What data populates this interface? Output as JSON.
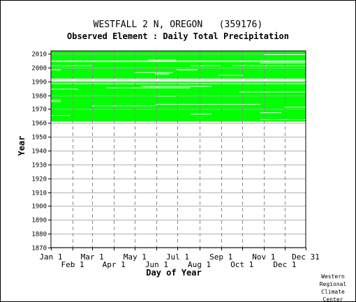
{
  "chart_data": {
    "type": "heatmap",
    "title": "WESTFALL 2 N, OREGON   (359176)",
    "subtitle": "Observed Element : Daily Total Precipitation",
    "xlabel": "Day of Year",
    "ylabel": "Year",
    "x_ticks_top_row": [
      "Jan 1",
      "Mar 1",
      "May 1",
      "Jul 1",
      "Sep 1",
      "Nov 1",
      "Dec 31"
    ],
    "x_ticks_bottom_row": [
      "Feb 1",
      "Apr 1",
      "Jun 1",
      "Aug 1",
      "Oct 1",
      "Dec 1"
    ],
    "x_tick_days": [
      1,
      32,
      60,
      91,
      121,
      152,
      182,
      213,
      244,
      274,
      305,
      335,
      365
    ],
    "y_ticks": [
      1870,
      1880,
      1890,
      1900,
      1910,
      1920,
      1930,
      1940,
      1950,
      1960,
      1970,
      1980,
      1990,
      2000,
      2010
    ],
    "ylim": [
      1870,
      2012
    ],
    "xlim": [
      1,
      365
    ],
    "grid": true,
    "data_color": "#00ff00",
    "data_year_ranges": [
      [
        1961,
        1989
      ],
      [
        1992,
        2003
      ],
      [
        2005,
        2011
      ]
    ],
    "gaps": [
      {
        "year": 1962,
        "day_start": 300,
        "day_end": 365
      },
      {
        "year": 1965,
        "day_start": 1,
        "day_end": 28
      },
      {
        "year": 1966,
        "day_start": 200,
        "day_end": 230
      },
      {
        "year": 1967,
        "day_start": 300,
        "day_end": 330
      },
      {
        "year": 1971,
        "day_start": 335,
        "day_end": 365
      },
      {
        "year": 1972,
        "day_start": 60,
        "day_end": 150
      },
      {
        "year": 1973,
        "day_start": 150,
        "day_end": 300
      },
      {
        "year": 1975,
        "day_start": 1,
        "day_end": 15
      },
      {
        "year": 1976,
        "day_start": 1,
        "day_end": 15
      },
      {
        "year": 1979,
        "day_start": 150,
        "day_end": 180
      },
      {
        "year": 1982,
        "day_start": 270,
        "day_end": 365
      },
      {
        "year": 1984,
        "day_start": 1,
        "day_end": 40
      },
      {
        "year": 1985,
        "day_start": 80,
        "day_end": 200
      },
      {
        "year": 1986,
        "day_start": 130,
        "day_end": 230
      },
      {
        "year": 1988,
        "day_start": 1,
        "day_end": 365
      },
      {
        "year": 1994,
        "day_start": 240,
        "day_end": 275
      },
      {
        "year": 1995,
        "day_start": 150,
        "day_end": 170
      },
      {
        "year": 1996,
        "day_start": 120,
        "day_end": 175
      },
      {
        "year": 1998,
        "day_start": 1,
        "day_end": 15
      },
      {
        "year": 1998,
        "day_start": 180,
        "day_end": 210
      },
      {
        "year": 2001,
        "day_start": 1,
        "day_end": 60
      },
      {
        "year": 2001,
        "day_start": 200,
        "day_end": 245
      },
      {
        "year": 2001,
        "day_start": 260,
        "day_end": 365
      },
      {
        "year": 2003,
        "day_start": 300,
        "day_end": 365
      },
      {
        "year": 2005,
        "day_start": 140,
        "day_end": 180
      },
      {
        "year": 2009,
        "day_start": 305,
        "day_end": 365
      }
    ]
  },
  "credit": [
    "Western",
    "Regional",
    "Climate",
    "Center"
  ]
}
